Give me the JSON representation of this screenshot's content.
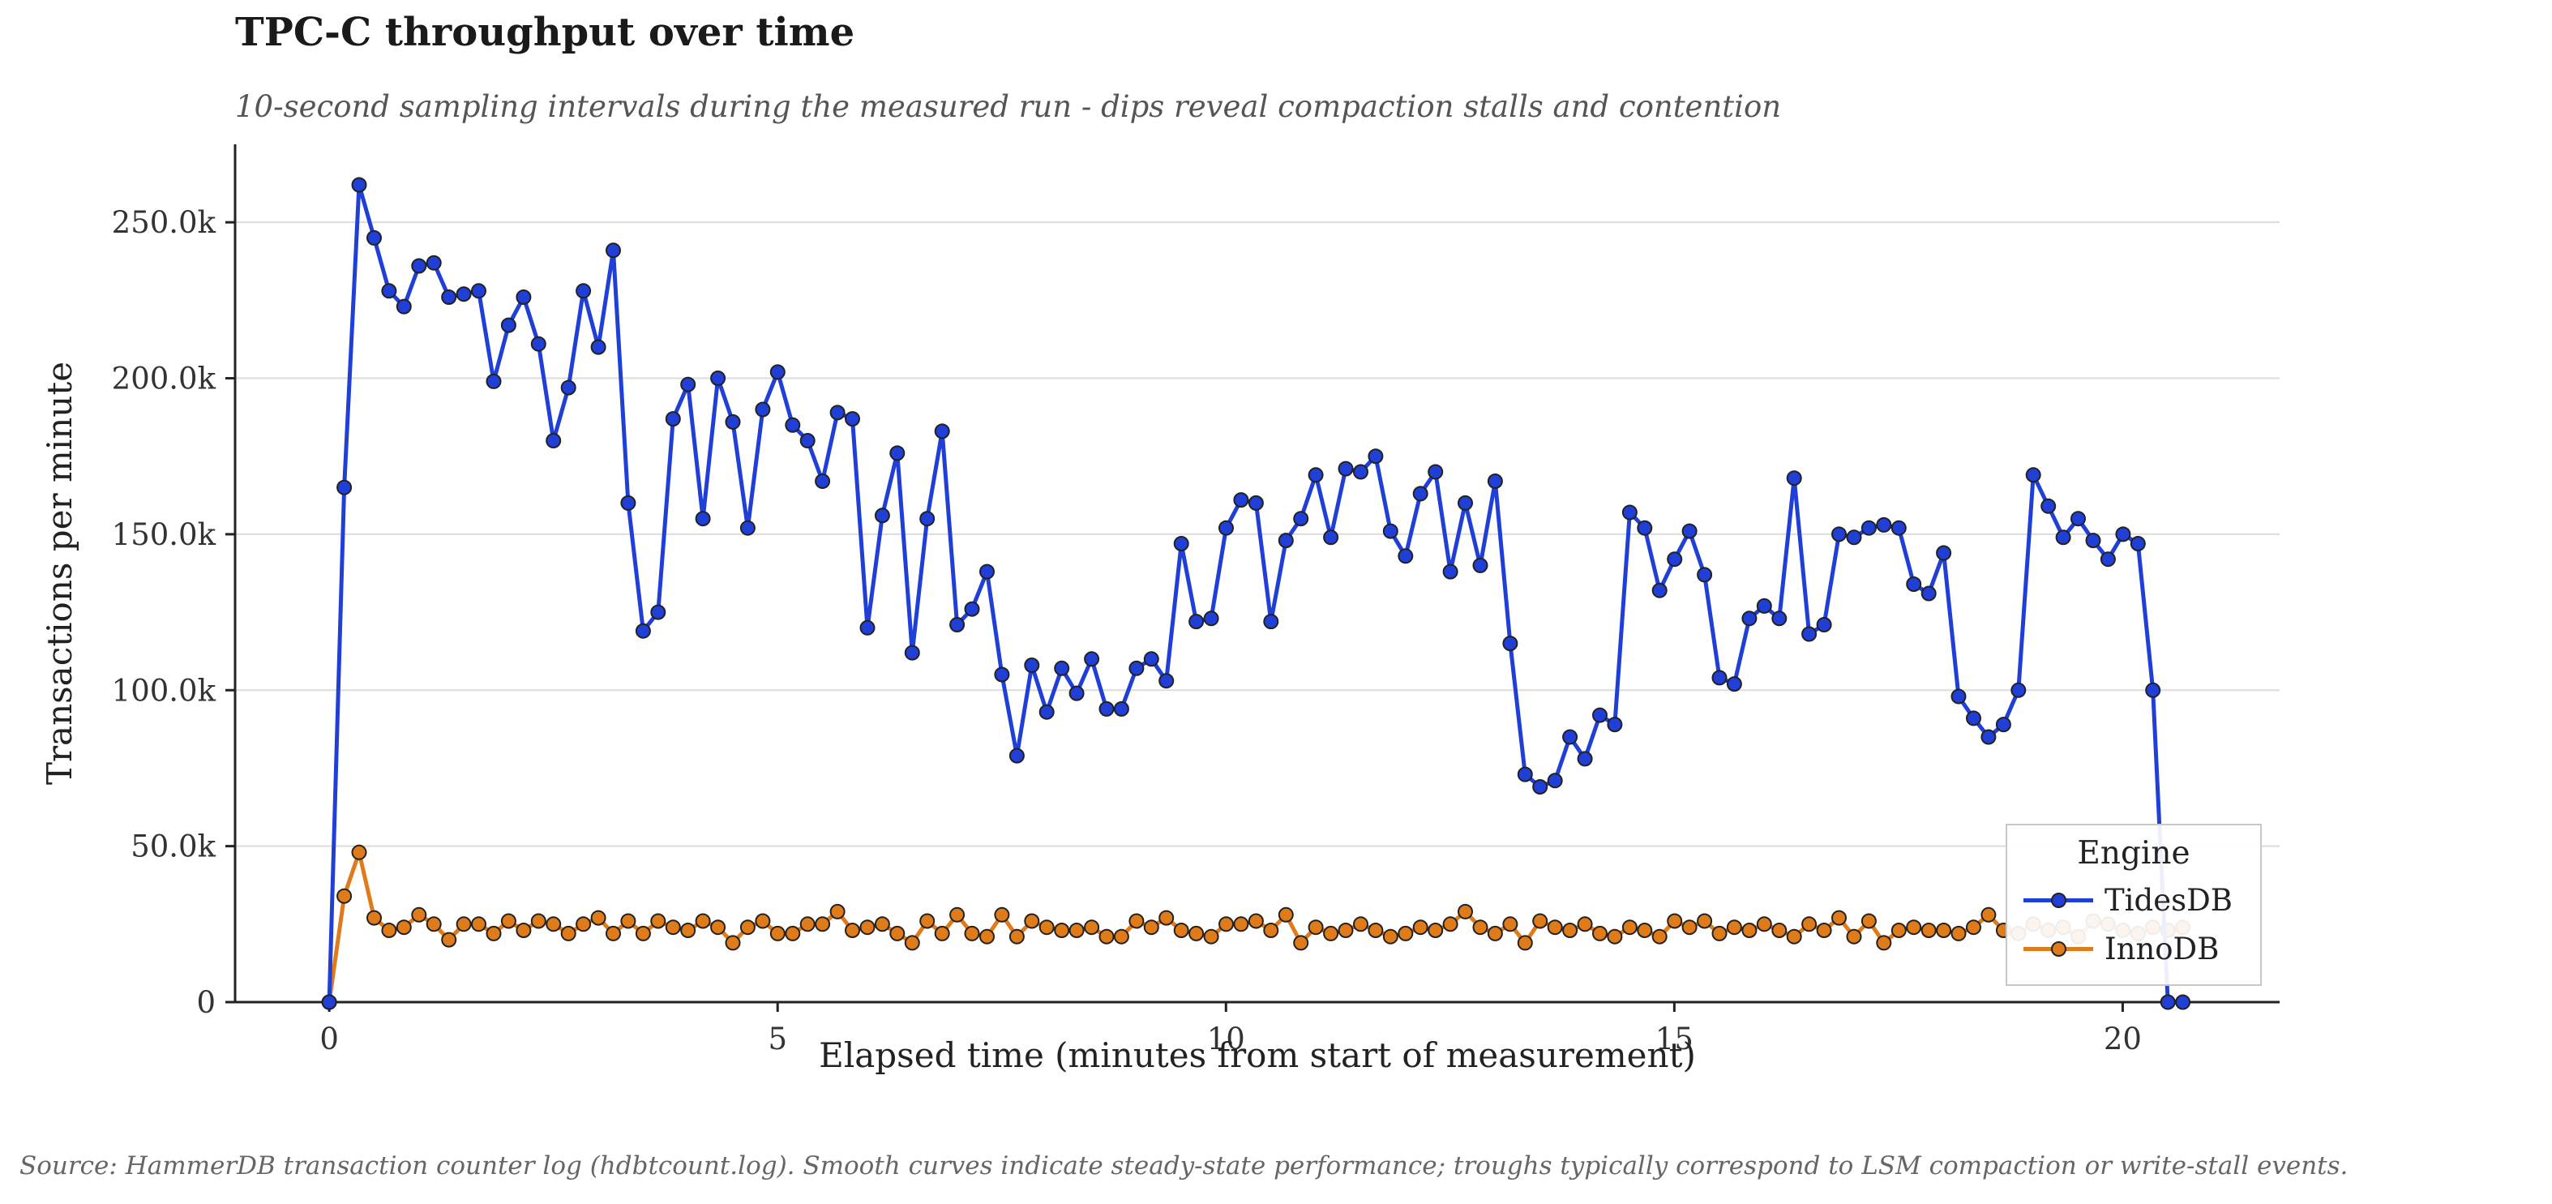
{
  "title": "TPC-C throughput over time",
  "subtitle": "10-second sampling intervals during the measured run  -  dips reveal compaction stalls and contention",
  "footer": "Source: HammerDB transaction counter log (hdbtcount.log).  Smooth curves indicate steady-state performance; troughs typically correspond to LSM compaction or write-stall events.",
  "colors": {
    "tidesdb": "#1f3fd6",
    "innodb": "#e07b1a",
    "grid": "#dcdcdc",
    "marker_edge": "#222222"
  },
  "chart_data": {
    "type": "line",
    "title": "TPC-C throughput over time",
    "subtitle": "10-second sampling intervals during the measured run  -  dips reveal compaction stalls and contention",
    "xlabel": "Elapsed time (minutes from start of measurement)",
    "ylabel": "Transactions per minute",
    "xlim": [
      -1.05,
      21.75
    ],
    "ylim": [
      0,
      275000
    ],
    "xticks": [
      0,
      5,
      10,
      15,
      20
    ],
    "xtick_labels": [
      "0",
      "5",
      "10",
      "15",
      "20"
    ],
    "yticks": [
      0,
      50000,
      100000,
      150000,
      200000,
      250000
    ],
    "ytick_labels": [
      "0",
      "50.0k",
      "100.0k",
      "150.0k",
      "200.0k",
      "250.0k"
    ],
    "grid": "horizontal",
    "legend_title": "Engine",
    "legend_position": "bottom-right",
    "x_step_minutes": 0.1667,
    "series": [
      {
        "name": "TidesDB",
        "color": "#1f3fd6",
        "values": [
          0,
          165000,
          262000,
          245000,
          228000,
          223000,
          236000,
          237000,
          226000,
          227000,
          228000,
          199000,
          217000,
          226000,
          211000,
          180000,
          197000,
          228000,
          210000,
          241000,
          160000,
          119000,
          125000,
          187000,
          198000,
          155000,
          200000,
          186000,
          152000,
          190000,
          202000,
          185000,
          180000,
          167000,
          189000,
          187000,
          120000,
          156000,
          176000,
          112000,
          155000,
          183000,
          121000,
          126000,
          138000,
          105000,
          79000,
          108000,
          93000,
          107000,
          99000,
          110000,
          94000,
          94000,
          107000,
          110000,
          103000,
          147000,
          122000,
          123000,
          152000,
          161000,
          160000,
          122000,
          148000,
          155000,
          169000,
          149000,
          171000,
          170000,
          175000,
          151000,
          143000,
          163000,
          170000,
          138000,
          160000,
          140000,
          167000,
          115000,
          73000,
          69000,
          71000,
          85000,
          78000,
          92000,
          89000,
          157000,
          152000,
          132000,
          142000,
          151000,
          137000,
          104000,
          102000,
          123000,
          127000,
          123000,
          168000,
          118000,
          121000,
          150000,
          149000,
          152000,
          153000,
          152000,
          134000,
          131000,
          144000,
          98000,
          91000,
          85000,
          89000,
          100000,
          169000,
          159000,
          149000,
          155000,
          148000,
          142000,
          150000,
          147000,
          100000,
          0,
          0
        ]
      },
      {
        "name": "InnoDB",
        "color": "#e07b1a",
        "values": [
          0,
          34000,
          48000,
          27000,
          23000,
          24000,
          28000,
          25000,
          20000,
          25000,
          25000,
          22000,
          26000,
          23000,
          26000,
          25000,
          22000,
          25000,
          27000,
          22000,
          26000,
          22000,
          26000,
          24000,
          23000,
          26000,
          24000,
          19000,
          24000,
          26000,
          22000,
          22000,
          25000,
          25000,
          29000,
          23000,
          24000,
          25000,
          22000,
          19000,
          26000,
          22000,
          28000,
          22000,
          21000,
          28000,
          21000,
          26000,
          24000,
          23000,
          23000,
          24000,
          21000,
          21000,
          26000,
          24000,
          27000,
          23000,
          22000,
          21000,
          25000,
          25000,
          26000,
          23000,
          28000,
          19000,
          24000,
          22000,
          23000,
          25000,
          23000,
          21000,
          22000,
          24000,
          23000,
          25000,
          29000,
          24000,
          22000,
          25000,
          19000,
          26000,
          24000,
          23000,
          25000,
          22000,
          21000,
          24000,
          23000,
          21000,
          26000,
          24000,
          26000,
          22000,
          24000,
          23000,
          25000,
          23000,
          21000,
          25000,
          23000,
          27000,
          21000,
          26000,
          19000,
          23000,
          24000,
          23000,
          23000,
          22000,
          24000,
          28000,
          23000,
          22000,
          25000,
          23000,
          24000,
          21000,
          26000,
          25000,
          23000,
          22000,
          24000,
          23000,
          24000
        ]
      }
    ]
  }
}
